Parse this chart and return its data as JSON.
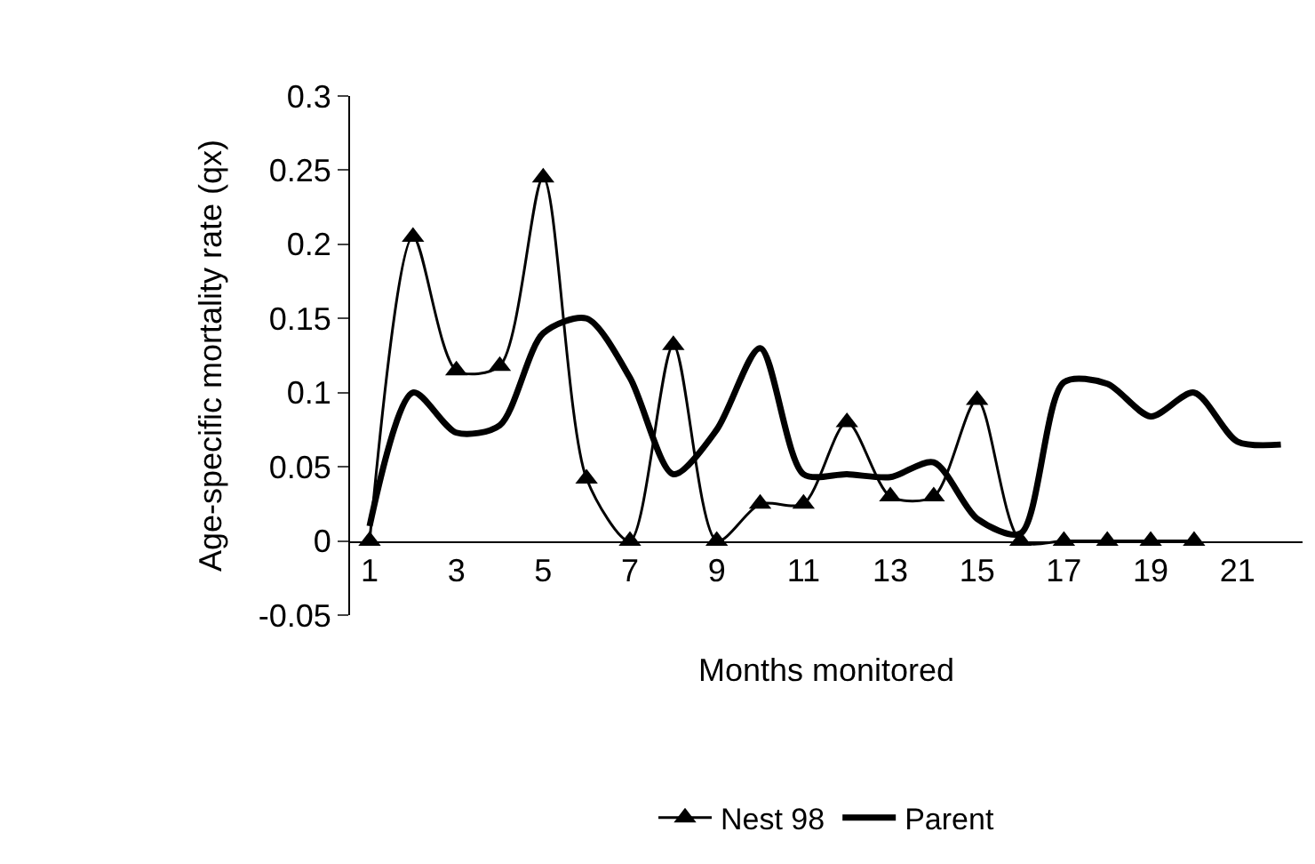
{
  "chart_data": {
    "type": "line",
    "xlabel": "Months monitored",
    "ylabel": "Age-specific mortality rate (qx)",
    "xlim": [
      0.55,
      22.5
    ],
    "xticks": [
      1,
      3,
      5,
      7,
      9,
      11,
      13,
      15,
      17,
      19,
      21
    ],
    "ylim": [
      -0.05,
      0.3
    ],
    "yticks": [
      -0.05,
      0,
      0.05,
      0.1,
      0.15,
      0.2,
      0.25,
      0.3
    ],
    "legend": "bottom",
    "series": [
      {
        "name": "Nest 98",
        "color": "#000000",
        "marker": "triangle",
        "x": [
          1,
          2,
          3,
          4,
          5,
          6,
          7,
          8,
          9,
          10,
          11,
          12,
          13,
          14,
          15,
          16,
          17,
          18,
          19,
          20
        ],
        "values": [
          0,
          0.205,
          0.115,
          0.118,
          0.245,
          0.042,
          0,
          0.132,
          0,
          0.025,
          0.025,
          0.08,
          0.03,
          0.03,
          0.095,
          0,
          0,
          0,
          0,
          0
        ]
      },
      {
        "name": "Parent",
        "color": "#000000",
        "marker": "none",
        "x": [
          1,
          2,
          3,
          4,
          5,
          6,
          7,
          8,
          9,
          10,
          11,
          12,
          13,
          14,
          15,
          16,
          17,
          18,
          19,
          20,
          21,
          22
        ],
        "values": [
          0.01,
          0.1,
          0.073,
          0.078,
          0.14,
          0.15,
          0.11,
          0.045,
          0.075,
          0.13,
          0.045,
          0.045,
          0.043,
          0.053,
          0.015,
          0.005,
          0.107,
          0.106,
          0.084,
          0.1,
          0.067,
          0.065
        ]
      }
    ]
  }
}
